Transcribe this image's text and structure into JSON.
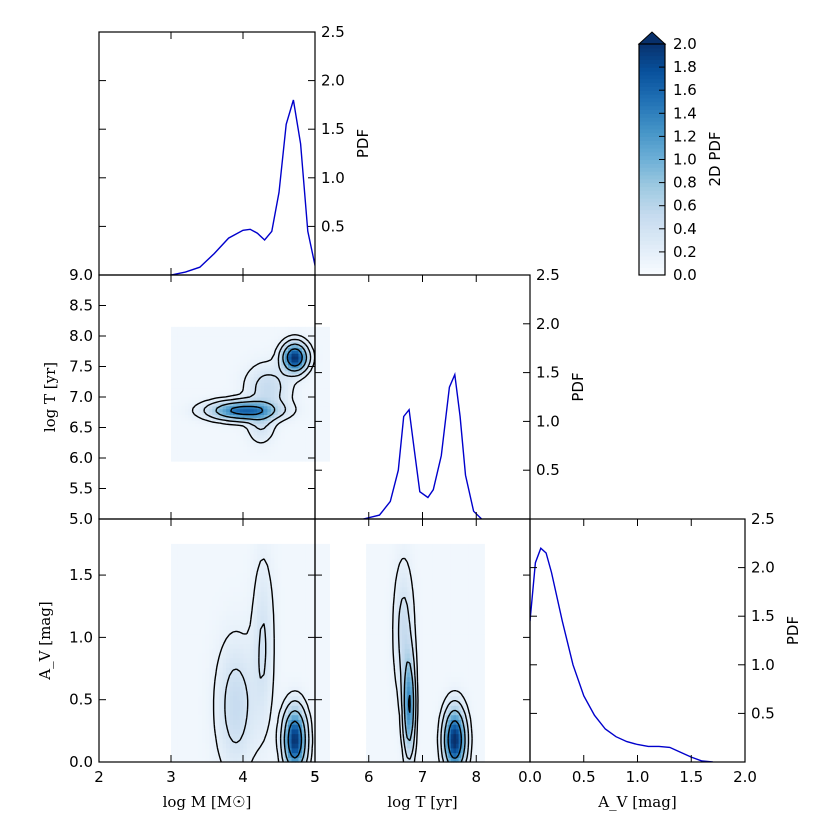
{
  "colors": {
    "line": "#0000cc",
    "contour": "#000000",
    "cmap": [
      "#f7fbff",
      "#deebf7",
      "#c6dbef",
      "#9ecae1",
      "#6baed6",
      "#4292c6",
      "#2171b5",
      "#08519c",
      "#08306b"
    ]
  },
  "chart_data": [
    {
      "type": "line",
      "panel": "M-marginal",
      "x": [
        3.0,
        3.2,
        3.4,
        3.6,
        3.8,
        4.0,
        4.1,
        4.2,
        4.3,
        4.4,
        4.5,
        4.6,
        4.7,
        4.8,
        4.9,
        5.0,
        5.1
      ],
      "y": [
        0.0,
        0.03,
        0.08,
        0.22,
        0.38,
        0.46,
        0.47,
        0.43,
        0.36,
        0.45,
        0.85,
        1.55,
        1.8,
        1.35,
        0.45,
        0.1,
        0.0
      ],
      "xlim": [
        2,
        5
      ],
      "ylim": [
        0,
        2.5
      ],
      "ylabel": "PDF",
      "ytick_labels": [
        "0.5",
        "1.0",
        "1.5",
        "2.0",
        "2.5"
      ]
    },
    {
      "type": "line",
      "panel": "T-marginal",
      "x": [
        5.9,
        6.2,
        6.4,
        6.55,
        6.65,
        6.75,
        6.85,
        6.95,
        7.1,
        7.2,
        7.35,
        7.5,
        7.6,
        7.7,
        7.8,
        7.95,
        8.1
      ],
      "y": [
        0.0,
        0.04,
        0.18,
        0.5,
        1.05,
        1.12,
        0.7,
        0.28,
        0.22,
        0.3,
        0.65,
        1.35,
        1.48,
        1.05,
        0.45,
        0.08,
        0.0
      ],
      "xlim": [
        5,
        9
      ],
      "ylim": [
        0,
        2.5
      ],
      "ylabel": "PDF",
      "ytick_labels": [
        "0.5",
        "1.0",
        "1.5",
        "2.0",
        "2.5"
      ]
    },
    {
      "type": "line",
      "panel": "Av-marginal",
      "x": [
        0.0,
        0.05,
        0.1,
        0.15,
        0.2,
        0.3,
        0.4,
        0.5,
        0.6,
        0.7,
        0.8,
        0.9,
        1.0,
        1.1,
        1.2,
        1.3,
        1.4,
        1.5,
        1.6,
        1.7
      ],
      "y": [
        1.45,
        2.05,
        2.2,
        2.15,
        1.95,
        1.45,
        1.0,
        0.68,
        0.48,
        0.34,
        0.26,
        0.21,
        0.18,
        0.16,
        0.16,
        0.15,
        0.1,
        0.05,
        0.01,
        0.0
      ],
      "xlim": [
        0,
        2.0
      ],
      "ylim": [
        0,
        2.5
      ],
      "xlabel": "A_V [mag]",
      "ylabel": "PDF",
      "xtick_labels": [
        "0.0",
        "0.5",
        "1.0",
        "1.5",
        "2.0"
      ],
      "ytick_labels": [
        "0.5",
        "1.0",
        "1.5",
        "2.0",
        "2.5"
      ]
    },
    {
      "type": "heatmap",
      "panel": "M-T",
      "xlim": [
        2,
        5
      ],
      "ylim": [
        5.0,
        9.0
      ],
      "grid_extent": {
        "x": [
          3.0,
          5.2
        ],
        "y": [
          5.95,
          8.15
        ]
      },
      "ylabel": "log T [yr]",
      "ytick_labels": [
        "5.0",
        "5.5",
        "6.0",
        "6.5",
        "7.0",
        "7.5",
        "8.0",
        "8.5",
        "9.0"
      ],
      "components": [
        {
          "x": 4.0,
          "y": 6.78,
          "sx": 0.3,
          "sy": 0.1,
          "w": 1.0
        },
        {
          "x": 4.72,
          "y": 7.65,
          "sx": 0.11,
          "sy": 0.15,
          "w": 1.3
        },
        {
          "x": 4.35,
          "y": 7.15,
          "sx": 0.2,
          "sy": 0.25,
          "w": 0.28
        },
        {
          "x": 4.25,
          "y": 6.55,
          "sx": 0.12,
          "sy": 0.2,
          "w": 0.2
        }
      ]
    },
    {
      "type": "heatmap",
      "panel": "M-Av",
      "xlim": [
        2,
        5
      ],
      "ylim": [
        0,
        1.95
      ],
      "grid_extent": {
        "x": [
          3.0,
          5.2
        ],
        "y": [
          0.0,
          1.75
        ]
      },
      "xlabel": "log M [M☉]",
      "ylabel": "A_V [mag]",
      "xtick_labels": [
        "2",
        "3",
        "4",
        "5"
      ],
      "ytick_labels": [
        "0.0",
        "0.5",
        "1.0",
        "1.5"
      ],
      "components": [
        {
          "x": 4.72,
          "y": 0.18,
          "sx": 0.1,
          "sy": 0.16,
          "w": 1.4
        },
        {
          "x": 3.9,
          "y": 0.45,
          "sx": 0.18,
          "sy": 0.35,
          "w": 0.3
        },
        {
          "x": 4.28,
          "y": 0.95,
          "sx": 0.1,
          "sy": 0.45,
          "w": 0.22
        }
      ]
    },
    {
      "type": "heatmap",
      "panel": "T-Av",
      "xlim": [
        5,
        9
      ],
      "ylim": [
        0,
        1.95
      ],
      "grid_extent": {
        "x": [
          5.95,
          8.15
        ],
        "y": [
          0.0,
          1.75
        ]
      },
      "xlabel": "log T [yr]",
      "xtick_labels": [
        "5",
        "6",
        "7",
        "8"
      ],
      "components": [
        {
          "x": 7.6,
          "y": 0.18,
          "sx": 0.13,
          "sy": 0.16,
          "w": 1.4
        },
        {
          "x": 6.75,
          "y": 0.45,
          "sx": 0.07,
          "sy": 0.25,
          "w": 0.9
        },
        {
          "x": 6.65,
          "y": 1.05,
          "sx": 0.12,
          "sy": 0.35,
          "w": 0.28
        }
      ]
    },
    {
      "type": "colorbar",
      "label": "2D PDF",
      "range": [
        0.0,
        2.0
      ],
      "extend": "max",
      "tick_labels": [
        "0.0",
        "0.2",
        "0.4",
        "0.6",
        "0.8",
        "1.0",
        "1.2",
        "1.4",
        "1.6",
        "1.8",
        "2.0"
      ]
    }
  ]
}
